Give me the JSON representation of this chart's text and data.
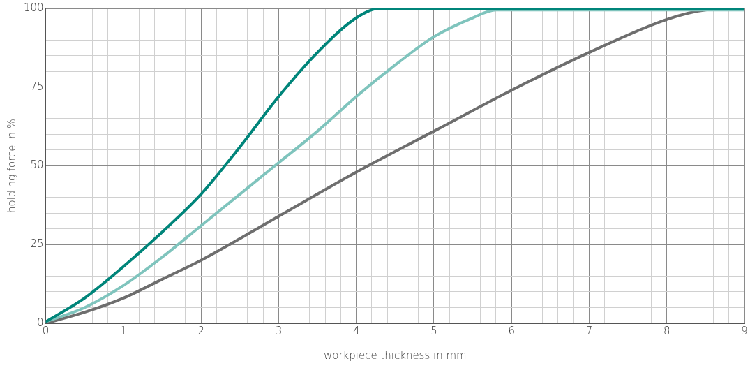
{
  "chart_data": {
    "type": "line",
    "xlabel": "workpiece thickness in mm",
    "ylabel": "holding force in %",
    "xlim": [
      0,
      9
    ],
    "ylim": [
      0,
      100
    ],
    "xticks": [
      0,
      {
        "value": 0.2,
        "label": null
      },
      {
        "value": 0.4,
        "label": null
      },
      {
        "value": 0.6,
        "label": null
      },
      {
        "value": 0.8,
        "label": null
      },
      1,
      {
        "value": 1.2,
        "label": null
      },
      {
        "value": 1.4,
        "label": null
      },
      {
        "value": 1.6,
        "label": null
      },
      {
        "value": 1.8,
        "label": null
      },
      2,
      {
        "value": 2.2,
        "label": null
      },
      {
        "value": 2.4,
        "label": null
      },
      {
        "value": 2.6,
        "label": null
      },
      {
        "value": 2.8,
        "label": null
      },
      3,
      {
        "value": 3.2,
        "label": null
      },
      {
        "value": 3.4,
        "label": null
      },
      {
        "value": 3.6,
        "label": null
      },
      {
        "value": 3.8,
        "label": null
      },
      4,
      {
        "value": 4.2,
        "label": null
      },
      {
        "value": 4.4,
        "label": null
      },
      {
        "value": 4.6,
        "label": null
      },
      {
        "value": 4.8,
        "label": null
      },
      5,
      {
        "value": 5.2,
        "label": null
      },
      {
        "value": 5.4,
        "label": null
      },
      {
        "value": 5.6,
        "label": null
      },
      {
        "value": 5.8,
        "label": null
      },
      6,
      {
        "value": 6.2,
        "label": null
      },
      {
        "value": 6.4,
        "label": null
      },
      {
        "value": 6.6,
        "label": null
      },
      {
        "value": 6.8,
        "label": null
      },
      7,
      {
        "value": 7.2,
        "label": null
      },
      {
        "value": 7.4,
        "label": null
      },
      {
        "value": 7.6,
        "label": null
      },
      {
        "value": 7.8,
        "label": null
      },
      8,
      {
        "value": 8.2,
        "label": null
      },
      {
        "value": 8.4,
        "label": null
      },
      {
        "value": 8.6,
        "label": null
      },
      {
        "value": 8.8,
        "label": null
      },
      9
    ],
    "yticks": [
      0,
      {
        "value": 5,
        "label": null
      },
      {
        "value": 10,
        "label": null
      },
      {
        "value": 15,
        "label": null
      },
      {
        "value": 20,
        "label": null
      },
      25,
      {
        "value": 30,
        "label": null
      },
      {
        "value": 35,
        "label": null
      },
      {
        "value": 40,
        "label": null
      },
      {
        "value": 45,
        "label": null
      },
      50,
      {
        "value": 55,
        "label": null
      },
      {
        "value": 60,
        "label": null
      },
      {
        "value": 65,
        "label": null
      },
      {
        "value": 70,
        "label": null
      },
      75,
      {
        "value": 80,
        "label": null
      },
      {
        "value": 85,
        "label": null
      },
      {
        "value": 90,
        "label": null
      },
      {
        "value": 95,
        "label": null
      },
      100
    ],
    "grid": true,
    "legend": false,
    "marker": "none",
    "line_style": "solid",
    "series": [
      {
        "color": "#00857a",
        "x": [
          0,
          0.5,
          1,
          1.5,
          2,
          2.5,
          3,
          3.5,
          4,
          4.3,
          9
        ],
        "values": [
          0.5,
          8,
          18,
          29,
          41,
          56,
          72,
          86,
          97,
          100,
          100
        ]
      },
      {
        "color": "#7fc4bd",
        "x": [
          0,
          0.5,
          1,
          1.5,
          2,
          2.5,
          3,
          3.5,
          4,
          4.5,
          5,
          5.5,
          5.8,
          9
        ],
        "values": [
          0.5,
          5,
          12,
          21,
          31,
          41,
          51,
          61,
          72,
          82,
          91,
          97,
          99.5,
          99.5
        ]
      },
      {
        "color": "#6e6e6e",
        "x": [
          0,
          0.5,
          1,
          1.5,
          2,
          3,
          4,
          5,
          6,
          7,
          8,
          8.5,
          9
        ],
        "values": [
          0,
          3.5,
          8,
          14,
          20,
          34,
          48,
          61,
          74,
          86,
          96.5,
          99.5,
          100
        ]
      }
    ]
  }
}
